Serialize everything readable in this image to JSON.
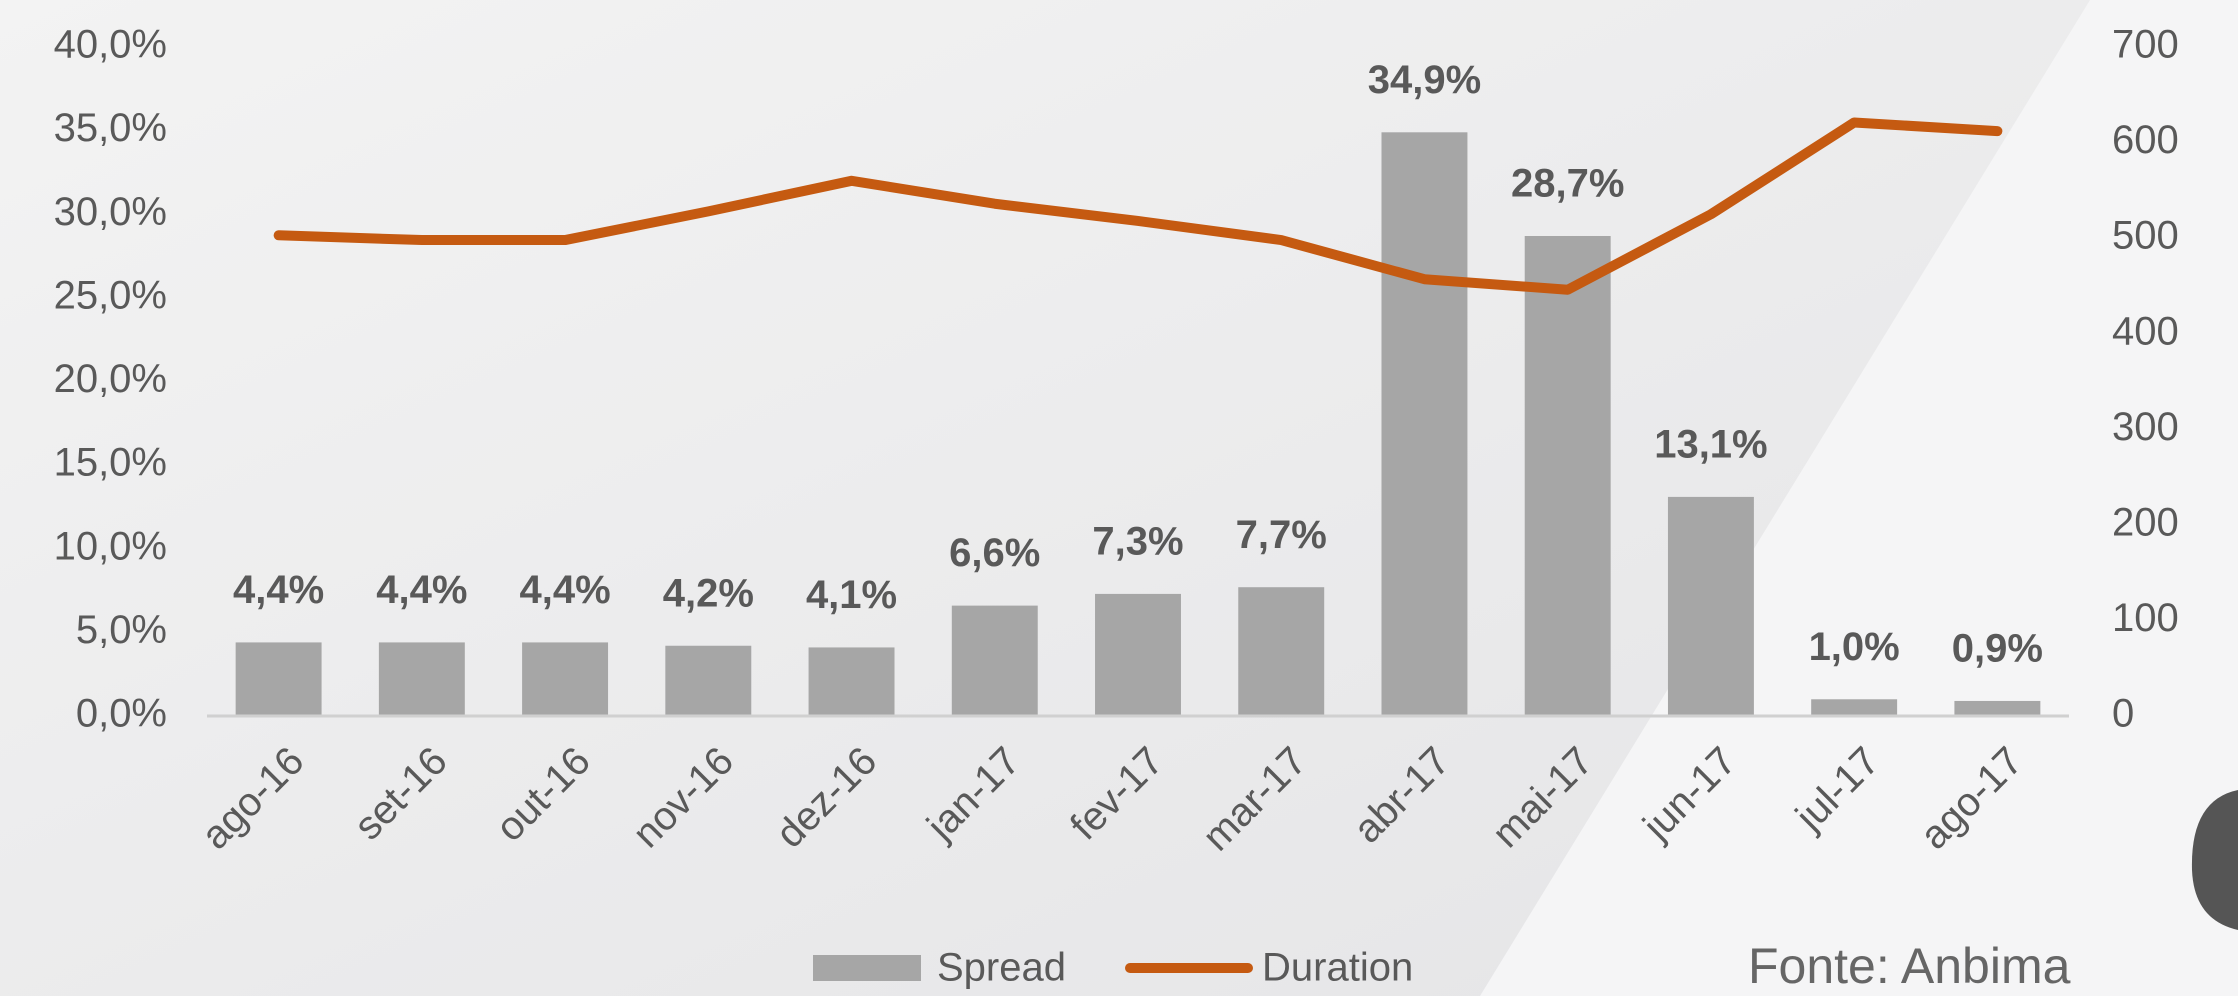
{
  "chart_data": {
    "type": "bar",
    "categories": [
      "ago-16",
      "set-16",
      "out-16",
      "nov-16",
      "dez-16",
      "jan-17",
      "fev-17",
      "mar-17",
      "abr-17",
      "mai-17",
      "jun-17",
      "jul-17",
      "ago-17"
    ],
    "series": [
      {
        "name": "Spread",
        "type": "bar",
        "color": "#a6a6a6",
        "values": [
          4.4,
          4.4,
          4.4,
          4.2,
          4.1,
          6.6,
          7.3,
          7.7,
          34.9,
          28.7,
          13.1,
          1.0,
          0.9
        ],
        "value_labels": [
          "4,4%",
          "4,4%",
          "4,4%",
          "4,2%",
          "4,1%",
          "6,6%",
          "7,3%",
          "7,7%",
          "34,9%",
          "28,7%",
          "13,1%",
          "1,0%",
          "0,9%"
        ]
      },
      {
        "name": "Duration",
        "type": "line",
        "axis": "y2",
        "color": "#c55a11",
        "values": [
          503,
          498,
          498,
          528,
          560,
          536,
          518,
          498,
          457,
          446,
          525,
          621,
          612
        ]
      }
    ],
    "ylim": [
      0,
      40
    ],
    "yticks": [
      {
        "value": 0,
        "label": "0,0%"
      },
      {
        "value": 5,
        "label": "5,0%"
      },
      {
        "value": 10,
        "label": "10,0%"
      },
      {
        "value": 15,
        "label": "15,0%"
      },
      {
        "value": 20,
        "label": "20,0%"
      },
      {
        "value": 25,
        "label": "25,0%"
      },
      {
        "value": 30,
        "label": "30,0%"
      },
      {
        "value": 35,
        "label": "35,0%"
      },
      {
        "value": 40,
        "label": "40,0%"
      }
    ],
    "y2lim": [
      0,
      700
    ],
    "y2ticks": [
      0,
      100,
      200,
      300,
      400,
      500,
      600,
      700
    ],
    "legend": "bottom",
    "source": "Fonte: Anbima"
  }
}
